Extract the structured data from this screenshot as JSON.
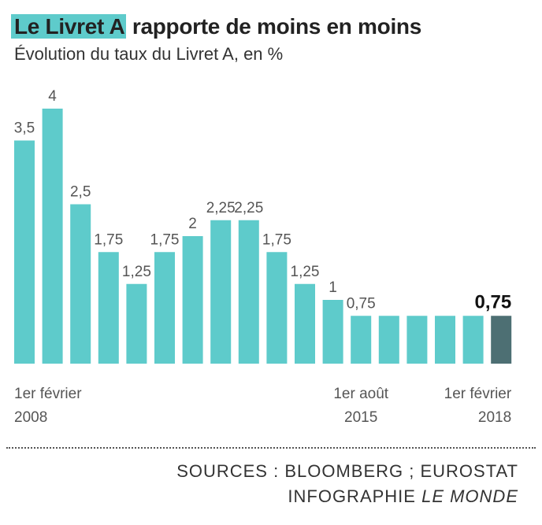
{
  "header": {
    "title_highlight": "Le Livret A",
    "title_rest": " rapporte de moins en moins",
    "subtitle": "Évolution du taux du Livret A, en %"
  },
  "footer": {
    "sources": "SOURCES : BLOOMBERG ;  EUROSTAT",
    "credit_prefix": "INFOGRAPHIE ",
    "credit_brand": "LE MONDE"
  },
  "colors": {
    "bar": "#5ecbcb",
    "bar_highlight": "#4d6f73",
    "text": "#333333"
  },
  "chart_data": {
    "type": "bar",
    "title": "Le Livret A rapporte de moins en moins",
    "subtitle": "Évolution du taux du Livret A, en %",
    "ylabel": "",
    "xlabel": "",
    "ylim": [
      0,
      4
    ],
    "grid": false,
    "categories": [
      "1er février 2008",
      "",
      "",
      "",
      "",
      "",
      "",
      "",
      "",
      "",
      "",
      "",
      "1er août 2015",
      "",
      "",
      "",
      "",
      "1er février 2018"
    ],
    "values": [
      3.5,
      4,
      2.5,
      1.75,
      1.25,
      1.75,
      2,
      2.25,
      2.25,
      1.75,
      1.25,
      1,
      0.75,
      0.75,
      0.75,
      0.75,
      0.75,
      0.75
    ],
    "value_labels": [
      "3,5",
      "4",
      "2,5",
      "1,75",
      "1,25",
      "1,75",
      "2",
      "2,25",
      "2,25",
      "1,75",
      "1,25",
      "1",
      "0,75",
      "",
      "",
      "",
      "",
      "0,75"
    ],
    "highlight_index": 17,
    "x_annotations": [
      {
        "index": 0,
        "line1": "1er février",
        "line2": "2008",
        "align": "start"
      },
      {
        "index": 12,
        "line1": "1er août",
        "line2": "2015",
        "align": "middle"
      },
      {
        "index": 17,
        "line1": "1er février",
        "line2": "2018",
        "align": "end"
      }
    ]
  }
}
